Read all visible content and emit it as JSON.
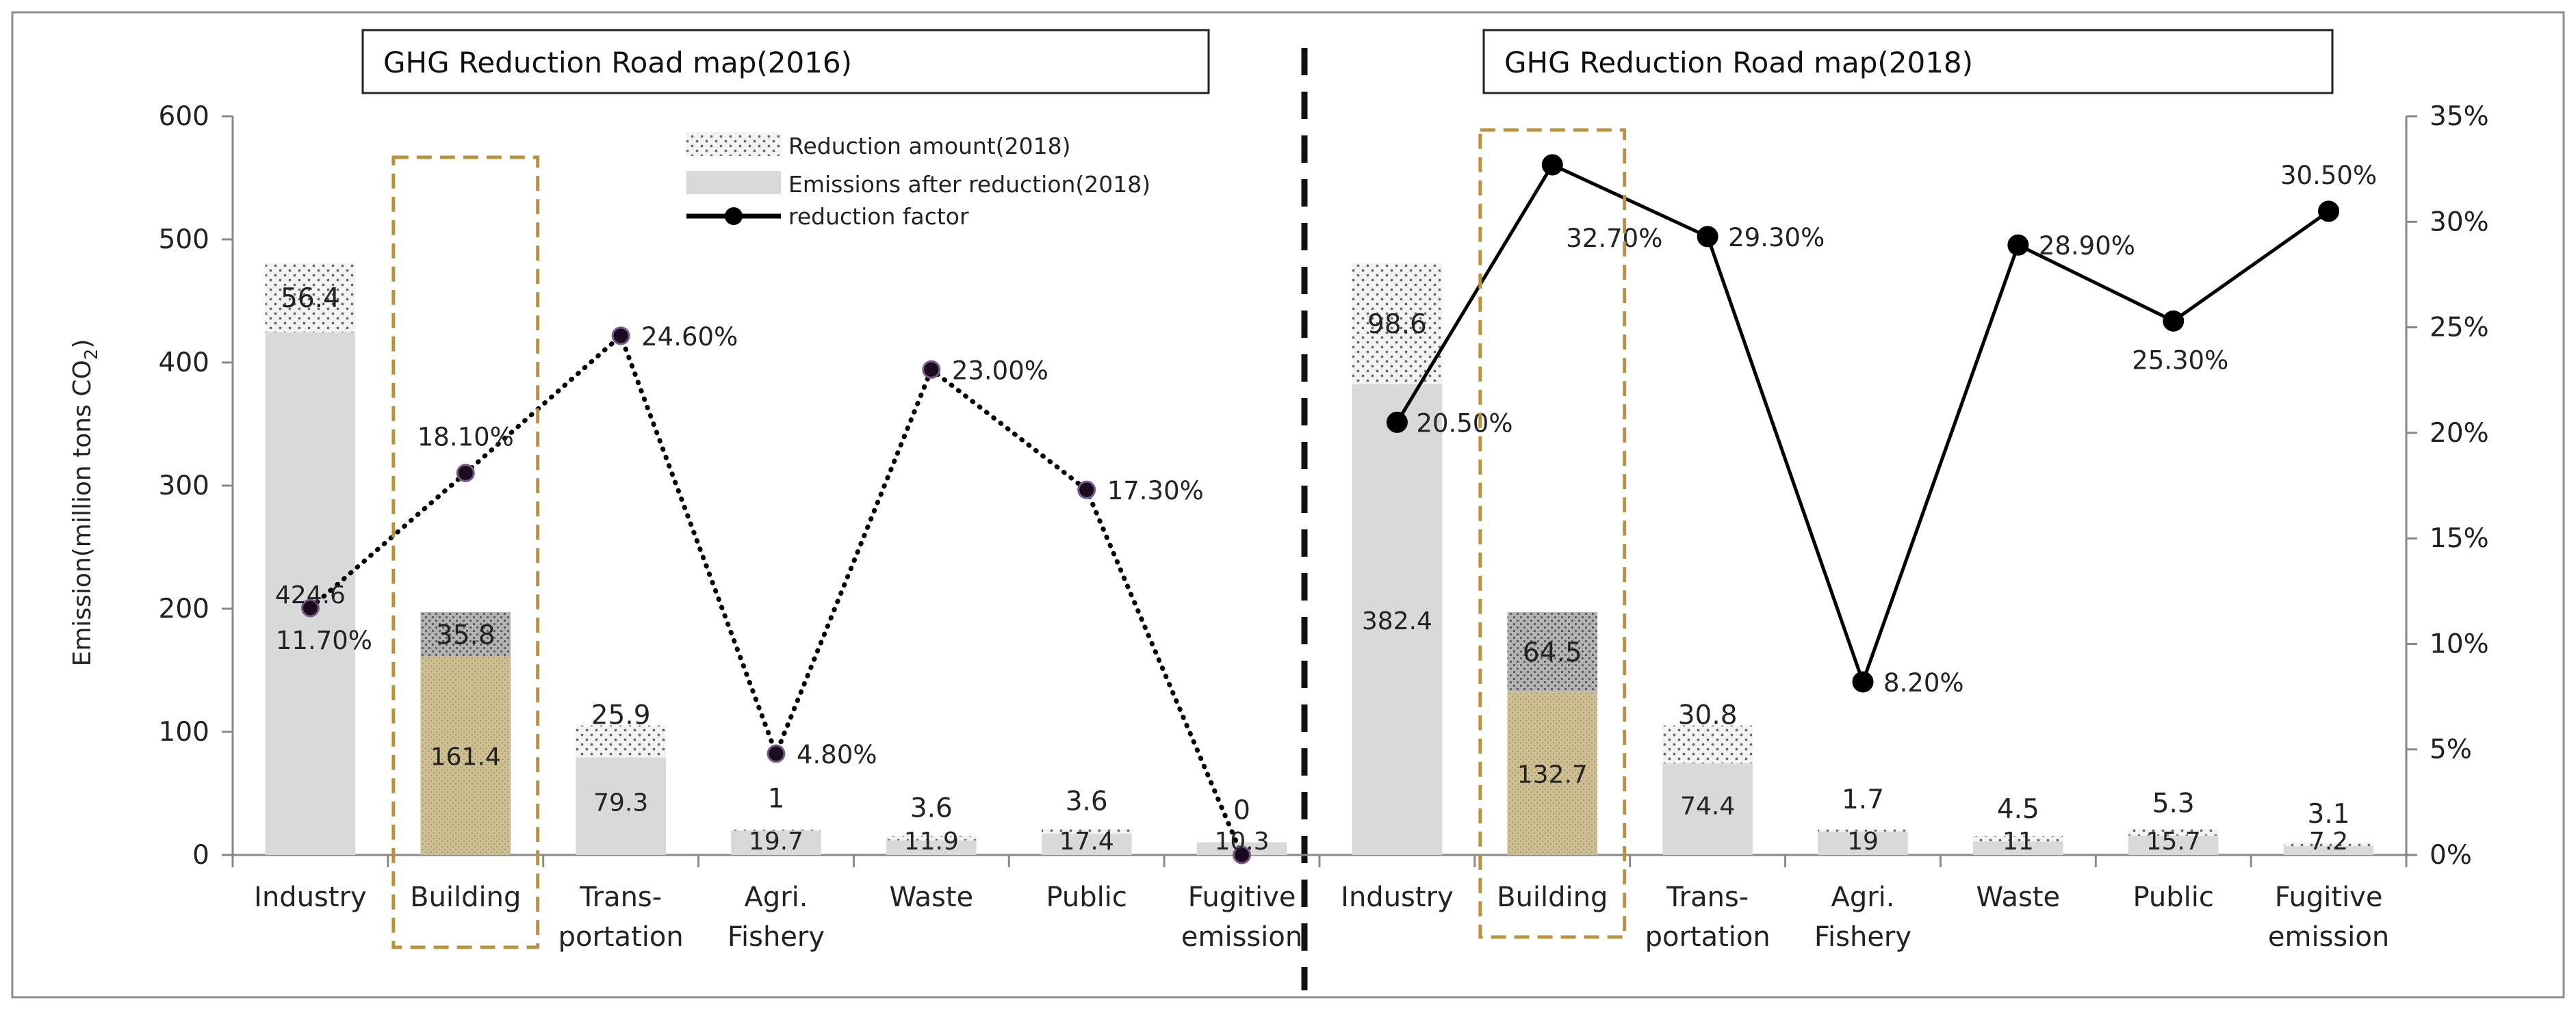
{
  "chart_data": {
    "type": "bar",
    "y_axis_label": "Emission(million tons CO",
    "y_axis_label_sub": "2",
    "y_axis_label_end": ")",
    "ylim": [
      0,
      600
    ],
    "yticks": [
      0,
      100,
      200,
      300,
      400,
      500,
      600
    ],
    "y2lim": [
      0,
      35
    ],
    "y2ticks": [
      "0%",
      "5%",
      "10%",
      "15%",
      "20%",
      "25%",
      "30%",
      "35%"
    ],
    "legend": {
      "reduction": "Reduction amount(2018)",
      "emissions": "Emissions after reduction(2018)",
      "factor": "reduction factor"
    },
    "panels": [
      {
        "title": "GHG Reduction Road map(2016)",
        "line_style": "dotted",
        "categories": [
          [
            "Industry"
          ],
          [
            "Building"
          ],
          [
            "Trans-",
            "portation"
          ],
          [
            "Agri.",
            "Fishery"
          ],
          [
            "Waste"
          ],
          [
            "Public"
          ],
          [
            "Fugitive",
            "emission"
          ]
        ],
        "emissions_after_reduction": [
          424.6,
          161.4,
          79.3,
          19.7,
          11.9,
          17.4,
          10.3
        ],
        "reduction_amount": [
          56.4,
          35.8,
          25.9,
          1,
          3.6,
          3.6,
          0
        ],
        "emission_labels": [
          "424.6",
          "161.4",
          "79.3",
          "19.7",
          "11.9",
          "17.4",
          "10.3"
        ],
        "reduction_labels": [
          "56.4",
          "35.8",
          "25.9",
          "1",
          "3.6",
          "3.6",
          "0"
        ],
        "reduction_factor": [
          11.7,
          18.1,
          24.6,
          4.8,
          23.0,
          17.3,
          0
        ],
        "factor_labels": [
          "11.70%",
          "18.10%",
          "24.60%",
          "4.80%",
          "23.00%",
          "17.30%",
          ""
        ]
      },
      {
        "title": "GHG Reduction Road map(2018)",
        "line_style": "solid",
        "categories": [
          [
            "Industry"
          ],
          [
            "Building"
          ],
          [
            "Trans-",
            "portation"
          ],
          [
            "Agri.",
            "Fishery"
          ],
          [
            "Waste"
          ],
          [
            "Public"
          ],
          [
            "Fugitive",
            "emission"
          ]
        ],
        "emissions_after_reduction": [
          382.4,
          132.7,
          74.4,
          19,
          11,
          15.7,
          7.2
        ],
        "reduction_amount": [
          98.6,
          64.5,
          30.8,
          1.7,
          4.5,
          5.3,
          3.1
        ],
        "emission_labels": [
          "382.4",
          "132.7",
          "74.4",
          "19",
          "11",
          "15.7",
          "7.2"
        ],
        "reduction_labels": [
          "98.6",
          "64.5",
          "30.8",
          "1.7",
          "4.5",
          "5.3",
          "3.1"
        ],
        "reduction_factor": [
          20.5,
          32.7,
          29.3,
          8.2,
          28.9,
          25.3,
          30.5
        ],
        "factor_labels": [
          "20.50%",
          "32.70%",
          "29.30%",
          "8.20%",
          "28.90%",
          "25.30%",
          "30.50%"
        ]
      }
    ],
    "highlighted_category": "Building",
    "colors": {
      "emission_bar": "#d9d9d9",
      "highlight_bar": "#cbbd92",
      "reduction_dots": "#777777",
      "factor_line": "#000000",
      "highlight_box": "#b8923f"
    }
  }
}
